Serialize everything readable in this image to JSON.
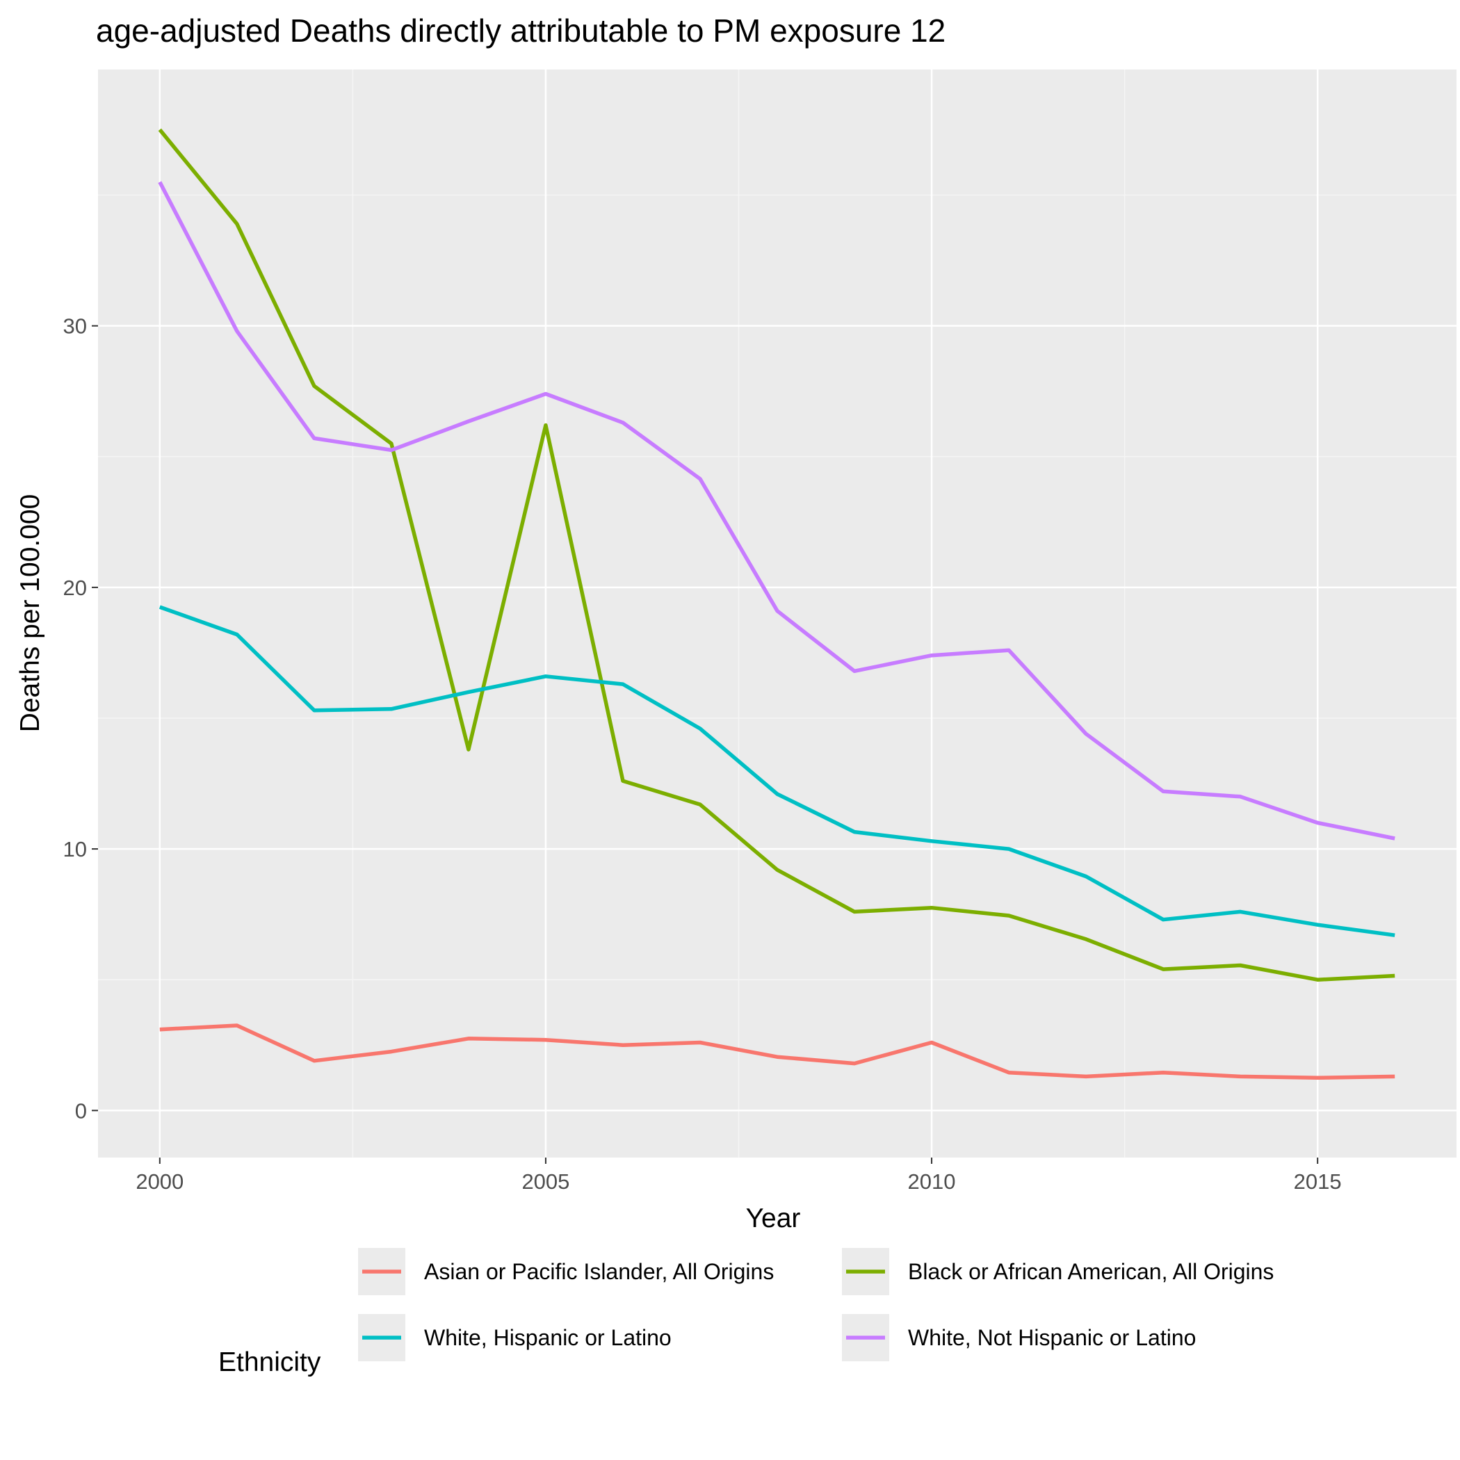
{
  "chart_data": {
    "type": "line",
    "title": "age-adjusted Deaths directly attributable to PM exposure 12",
    "xlabel": "Year",
    "ylabel": "Deaths per 100.000",
    "xlim": [
      1999.2,
      2016.8
    ],
    "ylim": [
      -1.8,
      39.8
    ],
    "x_ticks": [
      2000,
      2005,
      2010,
      2015
    ],
    "x_tick_labels": [
      "2000",
      "2005",
      "2010",
      "2015"
    ],
    "y_ticks": [
      0,
      10,
      20,
      30
    ],
    "y_tick_labels": [
      "0",
      "10",
      "20",
      "30"
    ],
    "grid": true,
    "legend": {
      "title": "Ethnicity",
      "position": "bottom"
    },
    "x": [
      2000,
      2001,
      2002,
      2003,
      2004,
      2005,
      2006,
      2007,
      2008,
      2009,
      2010,
      2011,
      2012,
      2013,
      2014,
      2015,
      2016
    ],
    "series": [
      {
        "name": "Asian or Pacific Islander, All Origins",
        "color": "#F8766D",
        "values": [
          3.1,
          3.25,
          1.9,
          2.25,
          2.75,
          2.7,
          2.5,
          2.6,
          2.05,
          1.8,
          2.6,
          1.45,
          1.3,
          1.45,
          1.3,
          1.25,
          1.3
        ]
      },
      {
        "name": "Black or African American, All Origins",
        "color": "#7CAE00",
        "values": [
          37.5,
          33.9,
          27.7,
          25.5,
          13.8,
          26.2,
          12.6,
          11.7,
          9.2,
          7.6,
          7.75,
          7.45,
          6.55,
          5.4,
          5.55,
          5.0,
          5.15
        ]
      },
      {
        "name": "White, Hispanic or Latino",
        "color": "#00BFC4",
        "values": [
          19.25,
          18.2,
          15.3,
          15.35,
          16.0,
          16.6,
          16.3,
          14.6,
          12.1,
          10.65,
          10.3,
          10.0,
          8.95,
          7.3,
          7.6,
          7.1,
          6.7
        ]
      },
      {
        "name": "White, Not Hispanic or Latino",
        "color": "#C77CFF",
        "values": [
          35.5,
          29.8,
          25.7,
          25.25,
          26.35,
          27.4,
          26.3,
          24.15,
          19.1,
          16.8,
          17.4,
          17.6,
          14.4,
          12.2,
          12.0,
          11.0,
          10.4
        ]
      }
    ]
  },
  "colors": {
    "panel_background": "#EBEBEB",
    "grid_major": "#FFFFFF",
    "grid_minor": "#F5F5F5",
    "legend_key_background": "#EBEBEB"
  }
}
